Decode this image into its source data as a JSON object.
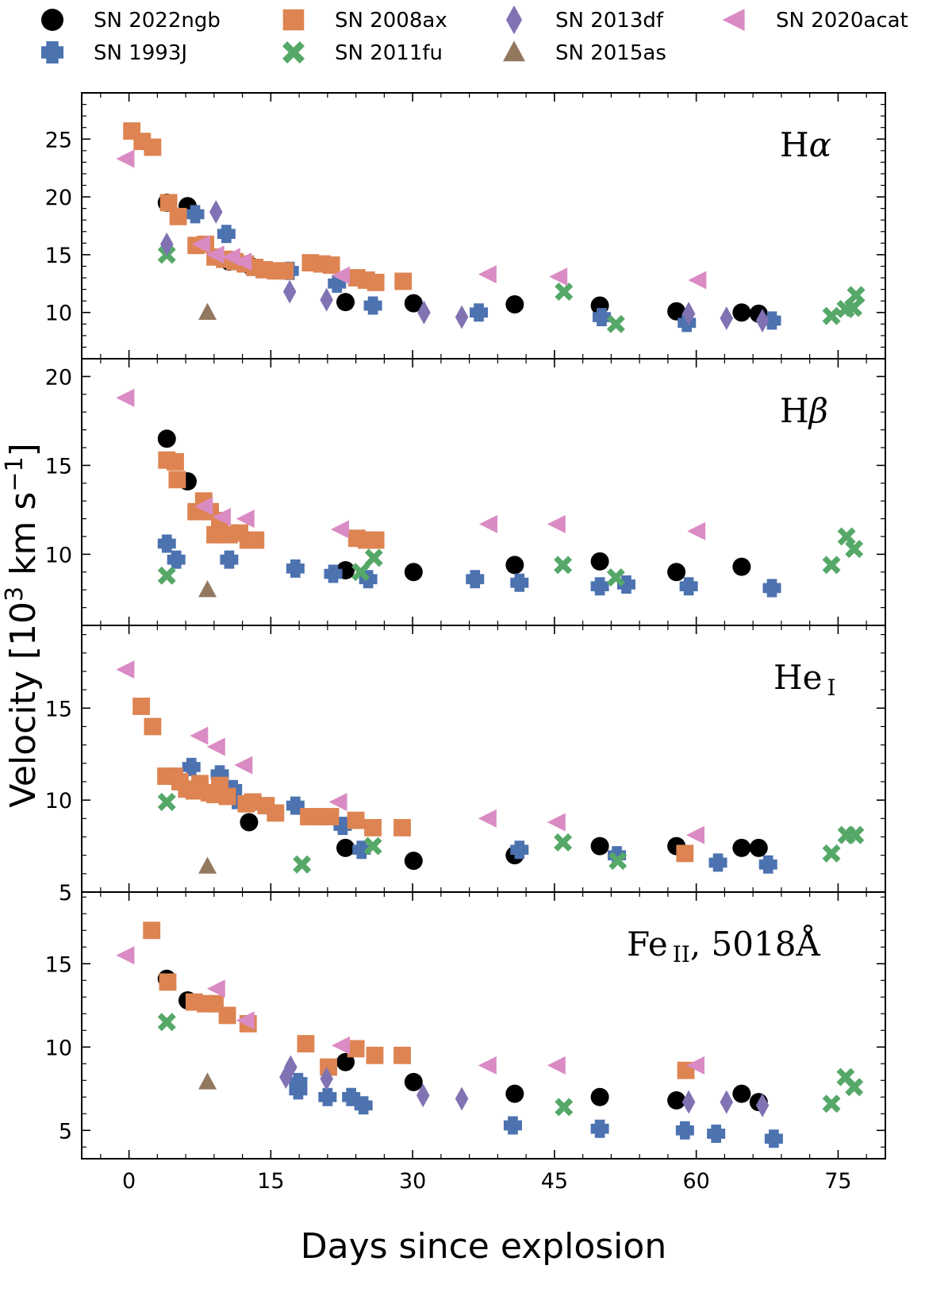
{
  "chart_data": {
    "type": "scatter",
    "xlabel": "Days since explosion",
    "ylabel": "Velocity [10",
    "ylabel_exp": "3",
    "ylabel_tail": " km s",
    "ylabel_exp2": "−1",
    "ylabel_close": "]",
    "xlim": [
      -5,
      80
    ],
    "xticks": [
      0,
      15,
      30,
      45,
      60,
      75
    ],
    "series_styles": [
      {
        "name": "SN 2022ngb",
        "color": "#000000",
        "marker": "circle"
      },
      {
        "name": "SN 1993J",
        "color": "#4c72b0",
        "marker": "plus"
      },
      {
        "name": "SN 2008ax",
        "color": "#dd8452",
        "marker": "square"
      },
      {
        "name": "SN 2011fu",
        "color": "#55a868",
        "marker": "x"
      },
      {
        "name": "SN 2013df",
        "color": "#8172b3",
        "marker": "diamond"
      },
      {
        "name": "SN 2015as",
        "color": "#937860",
        "marker": "triangle-up"
      },
      {
        "name": "SN 2020acat",
        "color": "#da8bc3",
        "marker": "triangle-left"
      }
    ],
    "panels": [
      {
        "label": "H",
        "label_greek": "α",
        "label_sub": "",
        "label_tail": "",
        "ylim": [
          6,
          29
        ],
        "yticks": [
          10,
          15,
          20,
          25
        ],
        "series": {
          "SN 2022ngb": [
            [
              4,
              19.5
            ],
            [
              6.2,
              19.2
            ],
            [
              10.6,
              14.4
            ],
            [
              12.9,
              14.0
            ],
            [
              22.9,
              10.9
            ],
            [
              30.1,
              10.8
            ],
            [
              40.8,
              10.7
            ],
            [
              49.8,
              10.6
            ],
            [
              57.9,
              10.1
            ],
            [
              64.8,
              10.0
            ],
            [
              66.6,
              9.9
            ]
          ],
          "SN 1993J": [
            [
              7,
              18.5
            ],
            [
              10.3,
              16.8
            ],
            [
              17,
              13.6
            ],
            [
              22,
              12.5
            ],
            [
              25.8,
              10.6
            ],
            [
              37,
              10.0
            ],
            [
              50,
              9.6
            ],
            [
              59,
              9.1
            ],
            [
              68,
              9.3
            ]
          ],
          "SN 2008ax": [
            [
              0.3,
              25.7
            ],
            [
              1.4,
              24.8
            ],
            [
              2.5,
              24.3
            ],
            [
              4.2,
              19.5
            ],
            [
              5.2,
              18.3
            ],
            [
              7.1,
              15.8
            ],
            [
              8.1,
              15.9
            ],
            [
              9.1,
              14.8
            ],
            [
              10.1,
              14.6
            ],
            [
              11.2,
              14.4
            ],
            [
              12.3,
              14.2
            ],
            [
              13.3,
              13.9
            ],
            [
              14.3,
              13.7
            ],
            [
              15.5,
              13.6
            ],
            [
              16.5,
              13.6
            ],
            [
              19.2,
              14.3
            ],
            [
              20.4,
              14.2
            ],
            [
              21.4,
              14.1
            ],
            [
              24.1,
              13.0
            ],
            [
              25.1,
              12.8
            ],
            [
              26.1,
              12.6
            ],
            [
              29.0,
              12.7
            ]
          ],
          "SN 2011fu": [
            [
              4,
              15.0
            ],
            [
              46,
              11.8
            ],
            [
              51.5,
              9.0
            ],
            [
              74.3,
              9.7
            ],
            [
              75.8,
              10.3
            ],
            [
              76.6,
              10.4
            ],
            [
              76.9,
              11.5
            ]
          ],
          "SN 2013df": [
            [
              4,
              15.9
            ],
            [
              9.2,
              18.7
            ],
            [
              17.0,
              11.8
            ],
            [
              20.9,
              11.1
            ],
            [
              31.2,
              10.0
            ],
            [
              35.2,
              9.6
            ],
            [
              59.2,
              9.9
            ],
            [
              63.2,
              9.5
            ],
            [
              67.0,
              9.3
            ]
          ],
          "SN 2015as": [
            [
              8.3,
              10.0
            ]
          ],
          "SN 2020acat": [
            [
              -0.3,
              23.3
            ],
            [
              7.7,
              15.9
            ],
            [
              9.2,
              15.0
            ],
            [
              10.9,
              14.8
            ],
            [
              12.1,
              14.4
            ],
            [
              22.5,
              13.2
            ],
            [
              38.0,
              13.3
            ],
            [
              45.5,
              13.1
            ],
            [
              60.2,
              12.8
            ]
          ]
        }
      },
      {
        "label": "H",
        "label_greek": "β",
        "label_sub": "",
        "label_tail": "",
        "ylim": [
          6.0,
          21.0
        ],
        "yticks": [
          10,
          15,
          20
        ],
        "series": {
          "SN 2022ngb": [
            [
              4,
              16.5
            ],
            [
              6.2,
              14.1
            ],
            [
              22.9,
              9.1
            ],
            [
              30.1,
              9.0
            ],
            [
              40.8,
              9.4
            ],
            [
              49.8,
              9.6
            ],
            [
              57.9,
              9.0
            ],
            [
              64.8,
              9.3
            ]
          ],
          "SN 1993J": [
            [
              4,
              10.6
            ],
            [
              5,
              9.7
            ],
            [
              10.6,
              9.7
            ],
            [
              17.6,
              9.2
            ],
            [
              21.6,
              8.9
            ],
            [
              25.3,
              8.6
            ],
            [
              36.6,
              8.6
            ],
            [
              41.3,
              8.4
            ],
            [
              49.8,
              8.2
            ],
            [
              52.6,
              8.3
            ],
            [
              59.2,
              8.2
            ],
            [
              68,
              8.1
            ]
          ],
          "SN 2008ax": [
            [
              4.0,
              15.3
            ],
            [
              4.9,
              15.2
            ],
            [
              5.1,
              14.2
            ],
            [
              7.1,
              12.4
            ],
            [
              7.9,
              13.0
            ],
            [
              8.6,
              12.4
            ],
            [
              9.6,
              11.9
            ],
            [
              9.1,
              11.1
            ],
            [
              10.6,
              11.1
            ],
            [
              11.7,
              11.2
            ],
            [
              12.6,
              10.8
            ],
            [
              13.4,
              10.8
            ],
            [
              24.1,
              10.9
            ],
            [
              25.1,
              10.8
            ],
            [
              26.1,
              10.8
            ]
          ],
          "SN 2011fu": [
            [
              4,
              8.8
            ],
            [
              24.5,
              9.0
            ],
            [
              25.9,
              9.8
            ],
            [
              45.9,
              9.4
            ],
            [
              51.5,
              8.7
            ],
            [
              74.3,
              9.4
            ],
            [
              75.9,
              11.0
            ],
            [
              76.7,
              10.3
            ]
          ],
          "SN 2015as": [
            [
              8.3,
              8.0
            ]
          ],
          "SN 2020acat": [
            [
              -0.3,
              18.8
            ],
            [
              8.0,
              12.7
            ],
            [
              9.9,
              12.1
            ],
            [
              12.4,
              12.0
            ],
            [
              22.4,
              11.4
            ],
            [
              38.1,
              11.7
            ],
            [
              45.3,
              11.7
            ],
            [
              60.1,
              11.3
            ]
          ]
        }
      },
      {
        "label": "He",
        "label_greek": "",
        "label_sub": "I",
        "label_tail": "",
        "ylim": [
          5,
          19.5
        ],
        "yticks": [
          5,
          10,
          15
        ],
        "series": {
          "SN 2022ngb": [
            [
              12.7,
              8.8
            ],
            [
              22.9,
              7.4
            ],
            [
              30.1,
              6.7
            ],
            [
              40.8,
              7.0
            ],
            [
              49.8,
              7.5
            ],
            [
              57.9,
              7.5
            ],
            [
              64.8,
              7.4
            ],
            [
              66.6,
              7.4
            ]
          ],
          "SN 1993J": [
            [
              6.6,
              11.8
            ],
            [
              9.6,
              11.4
            ],
            [
              11.0,
              10.6
            ],
            [
              11.4,
              10.0
            ],
            [
              17.6,
              9.7
            ],
            [
              22.6,
              8.6
            ],
            [
              24.6,
              7.3
            ],
            [
              41.3,
              7.3
            ],
            [
              51.6,
              7.0
            ],
            [
              62.3,
              6.6
            ],
            [
              67.6,
              6.5
            ]
          ],
          "SN 2008ax": [
            [
              1.3,
              15.1
            ],
            [
              2.5,
              14.0
            ],
            [
              3.9,
              11.3
            ],
            [
              4.8,
              11.3
            ],
            [
              5.4,
              11.0
            ],
            [
              6.1,
              10.6
            ],
            [
              6.9,
              10.5
            ],
            [
              7.5,
              10.9
            ],
            [
              8.5,
              10.4
            ],
            [
              9.1,
              10.3
            ],
            [
              9.6,
              10.8
            ],
            [
              10.4,
              10.2
            ],
            [
              12.4,
              9.8
            ],
            [
              13.1,
              9.9
            ],
            [
              14.5,
              9.7
            ],
            [
              15.5,
              9.3
            ],
            [
              19.0,
              9.1
            ],
            [
              20.1,
              9.1
            ],
            [
              21.3,
              9.1
            ],
            [
              24.0,
              8.9
            ],
            [
              25.8,
              8.5
            ],
            [
              28.9,
              8.5
            ],
            [
              58.8,
              7.1
            ]
          ],
          "SN 2011fu": [
            [
              4,
              9.9
            ],
            [
              18.3,
              6.5
            ],
            [
              25.8,
              7.5
            ],
            [
              45.9,
              7.7
            ],
            [
              51.7,
              6.7
            ],
            [
              74.3,
              7.1
            ],
            [
              75.9,
              8.1
            ],
            [
              76.8,
              8.1
            ]
          ],
          "SN 2015as": [
            [
              8.3,
              6.4
            ]
          ],
          "SN 2020acat": [
            [
              -0.3,
              17.1
            ],
            [
              7.5,
              13.5
            ],
            [
              9.3,
              12.9
            ],
            [
              12.2,
              11.9
            ],
            [
              22.2,
              9.9
            ],
            [
              38.0,
              9.0
            ],
            [
              45.3,
              8.8
            ],
            [
              60.0,
              8.1
            ]
          ]
        }
      },
      {
        "label": "Fe",
        "label_greek": "",
        "label_sub": "II",
        "label_tail": ", 5018Å",
        "ylim": [
          3.3,
          19.3
        ],
        "yticks": [
          5,
          10,
          15
        ],
        "series": {
          "SN 2022ngb": [
            [
              4,
              14.1
            ],
            [
              6.2,
              12.8
            ],
            [
              22.9,
              9.1
            ],
            [
              30.1,
              7.9
            ],
            [
              40.8,
              7.2
            ],
            [
              49.8,
              7.0
            ],
            [
              57.9,
              6.8
            ],
            [
              64.8,
              7.2
            ],
            [
              66.6,
              6.7
            ]
          ],
          "SN 1993J": [
            [
              17.9,
              7.9
            ],
            [
              17.9,
              7.4
            ],
            [
              21,
              7.0
            ],
            [
              23.5,
              7.0
            ],
            [
              24.8,
              6.5
            ],
            [
              40.6,
              5.3
            ],
            [
              49.8,
              5.1
            ],
            [
              58.8,
              5.0
            ],
            [
              62.1,
              4.8
            ],
            [
              68.2,
              4.5
            ]
          ],
          "SN 2008ax": [
            [
              2.4,
              17.0
            ],
            [
              4.1,
              13.9
            ],
            [
              6.9,
              12.7
            ],
            [
              8.1,
              12.6
            ],
            [
              9.1,
              12.6
            ],
            [
              10.4,
              11.9
            ],
            [
              12.6,
              11.4
            ],
            [
              18.7,
              10.2
            ],
            [
              21.1,
              8.8
            ],
            [
              24.0,
              9.9
            ],
            [
              26.0,
              9.5
            ],
            [
              28.9,
              9.5
            ],
            [
              58.9,
              8.6
            ]
          ],
          "SN 2011fu": [
            [
              4,
              11.5
            ],
            [
              46.0,
              6.4
            ],
            [
              74.3,
              6.6
            ],
            [
              75.8,
              8.2
            ],
            [
              76.7,
              7.6
            ]
          ],
          "SN 2013df": [
            [
              16.6,
              8.2
            ],
            [
              17.1,
              8.8
            ],
            [
              20.9,
              8.1
            ],
            [
              31.1,
              7.1
            ],
            [
              35.2,
              6.9
            ],
            [
              59.2,
              6.7
            ],
            [
              63.2,
              6.7
            ],
            [
              67.0,
              6.5
            ]
          ],
          "SN 2015as": [
            [
              8.3,
              7.9
            ]
          ],
          "SN 2020acat": [
            [
              -0.3,
              15.5
            ],
            [
              9.3,
              13.5
            ],
            [
              12.4,
              11.6
            ],
            [
              22.5,
              10.1
            ],
            [
              38.0,
              8.9
            ],
            [
              45.3,
              8.9
            ],
            [
              60.0,
              8.9
            ]
          ]
        }
      }
    ]
  }
}
